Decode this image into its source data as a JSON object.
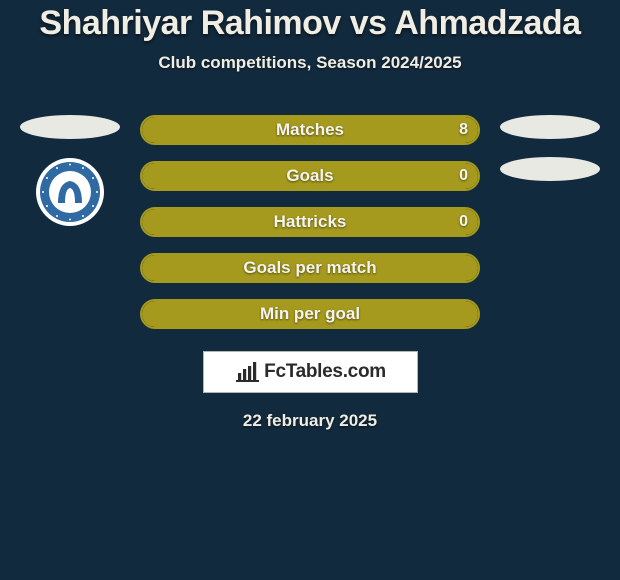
{
  "title": "Shahriyar Rahimov vs Ahmadzada",
  "subtitle": "Club competitions, Season 2024/2025",
  "date": "22 february 2025",
  "branding": {
    "text": "FcTables.com"
  },
  "colors": {
    "page_bg": "#122a3d",
    "bar_border": "#a59a1d",
    "bar_fill": "#a59a1d",
    "ellipse_light": "#e9e9e4",
    "badge_outer": "#ffffff",
    "badge_ring": "#2f6aa3",
    "badge_inner": "#ffffff",
    "badge_letter": "#2f6aa3"
  },
  "left_side": {
    "ellipses": 1,
    "show_badge": true
  },
  "right_side": {
    "ellipses": 2,
    "show_badge": false
  },
  "bars": [
    {
      "label": "Matches",
      "value_right": "8",
      "fill_pct": 100
    },
    {
      "label": "Goals",
      "value_right": "0",
      "fill_pct": 100
    },
    {
      "label": "Hattricks",
      "value_right": "0",
      "fill_pct": 100
    },
    {
      "label": "Goals per match",
      "value_right": "",
      "fill_pct": 100
    },
    {
      "label": "Min per goal",
      "value_right": "",
      "fill_pct": 100
    }
  ]
}
